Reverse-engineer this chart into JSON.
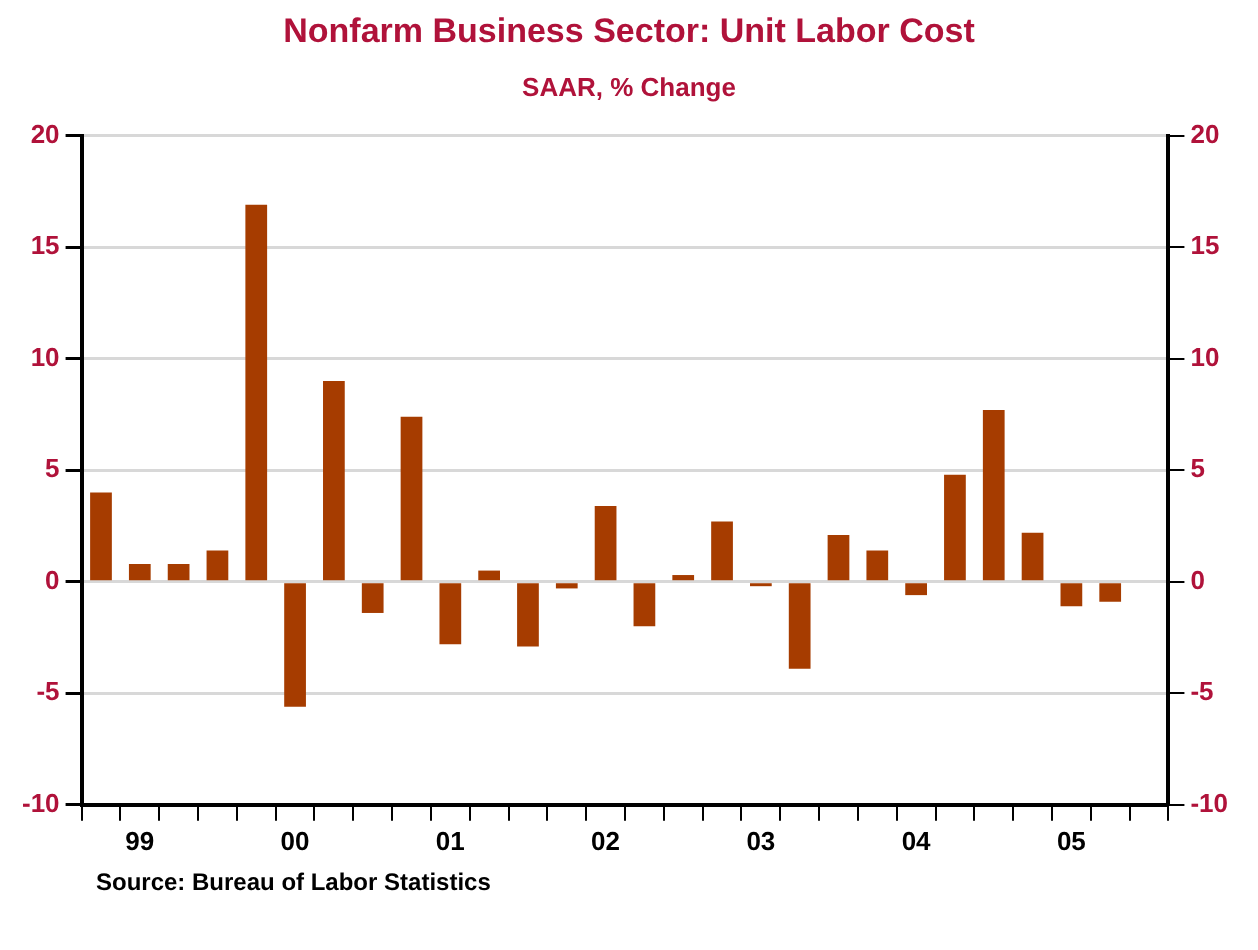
{
  "chart_data": {
    "type": "bar",
    "title": "Nonfarm Business Sector: Unit Labor Cost",
    "subtitle": "SAAR, % Change",
    "categories": [
      null,
      "99",
      null,
      null,
      null,
      "00",
      null,
      null,
      null,
      "01",
      null,
      null,
      null,
      "02",
      null,
      null,
      null,
      "03",
      null,
      null,
      null,
      "04",
      null,
      null,
      null,
      "05",
      null,
      null
    ],
    "values": [
      4.0,
      0.8,
      0.8,
      1.4,
      16.9,
      -5.6,
      9.0,
      -1.4,
      7.4,
      -2.8,
      0.5,
      -2.9,
      -0.3,
      3.4,
      -2.0,
      0.3,
      2.7,
      -0.2,
      -3.9,
      2.1,
      1.4,
      -0.6,
      4.8,
      7.7,
      2.2,
      -1.1,
      -0.9,
      null
    ],
    "color": "#a63c00",
    "ylim": [
      -10,
      20
    ],
    "yticks": [
      -10,
      -5,
      0,
      5,
      10,
      15,
      20
    ],
    "y2lim": [
      -10,
      20
    ],
    "y2ticks": [
      -10,
      -5,
      0,
      5,
      10,
      15,
      20
    ],
    "grid": "y",
    "legend": false,
    "annotations": [
      "Source:  Bureau of Labor Statistics"
    ]
  }
}
